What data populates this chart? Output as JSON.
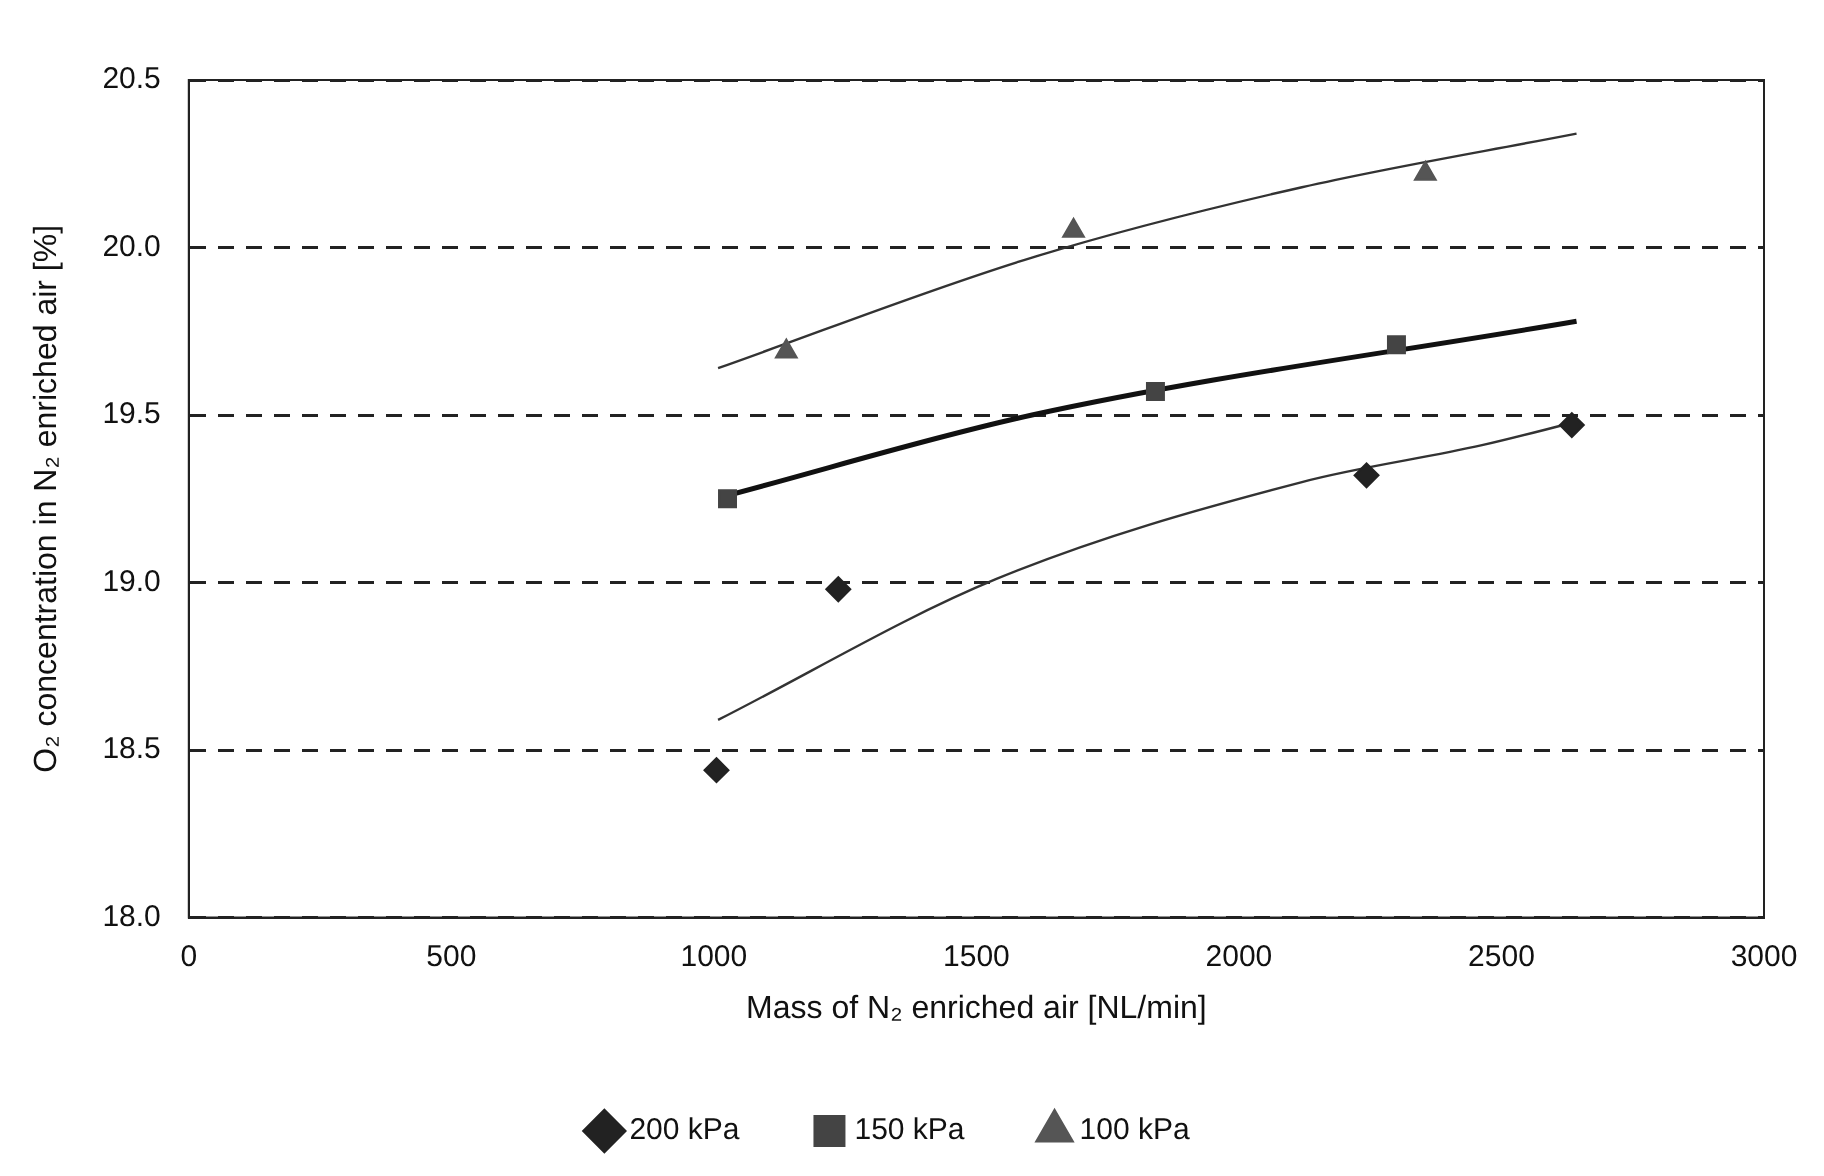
{
  "chart_data": {
    "type": "scatter",
    "xlabel": "Mass of N₂ enriched air [NL/min]",
    "ylabel": "O₂ concentration in N₂ enriched air [%]",
    "xlim": [
      0,
      3000
    ],
    "xticks": [
      0,
      500,
      1000,
      1500,
      2000,
      2500,
      3000
    ],
    "ylim": [
      18.0,
      20.5
    ],
    "yticks": [
      {
        "value": 18,
        "label": "18.0"
      },
      {
        "value": 18.5,
        "label": "18.5"
      },
      {
        "value": 19,
        "label": "19.0"
      },
      {
        "value": 19.5,
        "label": "19.5"
      },
      {
        "value": 20,
        "label": "20.0"
      },
      {
        "value": 20.5,
        "label": "20.5"
      }
    ],
    "grid": "y",
    "legend": "bottom",
    "series": [
      {
        "name": "200 kPa",
        "color": "#222222",
        "marker": "diamond",
        "x": [
          1005,
          1237,
          2243,
          2634
        ],
        "values": [
          18.44,
          18.98,
          19.32,
          19.47
        ]
      },
      {
        "name": "150 kPa",
        "color": "#444444",
        "marker": "square",
        "x": [
          1026,
          1841,
          2300
        ],
        "values": [
          19.25,
          19.57,
          19.71
        ]
      },
      {
        "name": "100 kPa",
        "color": "#555555",
        "marker": "triangle",
        "x": [
          1138,
          1685,
          2355
        ],
        "values": [
          19.69,
          20.05,
          20.22
        ]
      },
      {
        "type": "line",
        "color": "#333333",
        "marker": "none",
        "x": [
          1008,
          1537,
          2120,
          2463,
          2643
        ],
        "values": [
          18.59,
          19.01,
          19.3,
          19.41,
          19.48
        ]
      },
      {
        "type": "line",
        "color": "#111111",
        "marker": "none",
        "x": [
          1026,
          1606,
          2643
        ],
        "values": [
          19.26,
          19.5,
          19.78
        ]
      },
      {
        "type": "line",
        "color": "#333333",
        "marker": "none",
        "x": [
          1008,
          1606,
          2120,
          2643
        ],
        "values": [
          19.64,
          19.97,
          20.18,
          20.34
        ]
      }
    ]
  }
}
